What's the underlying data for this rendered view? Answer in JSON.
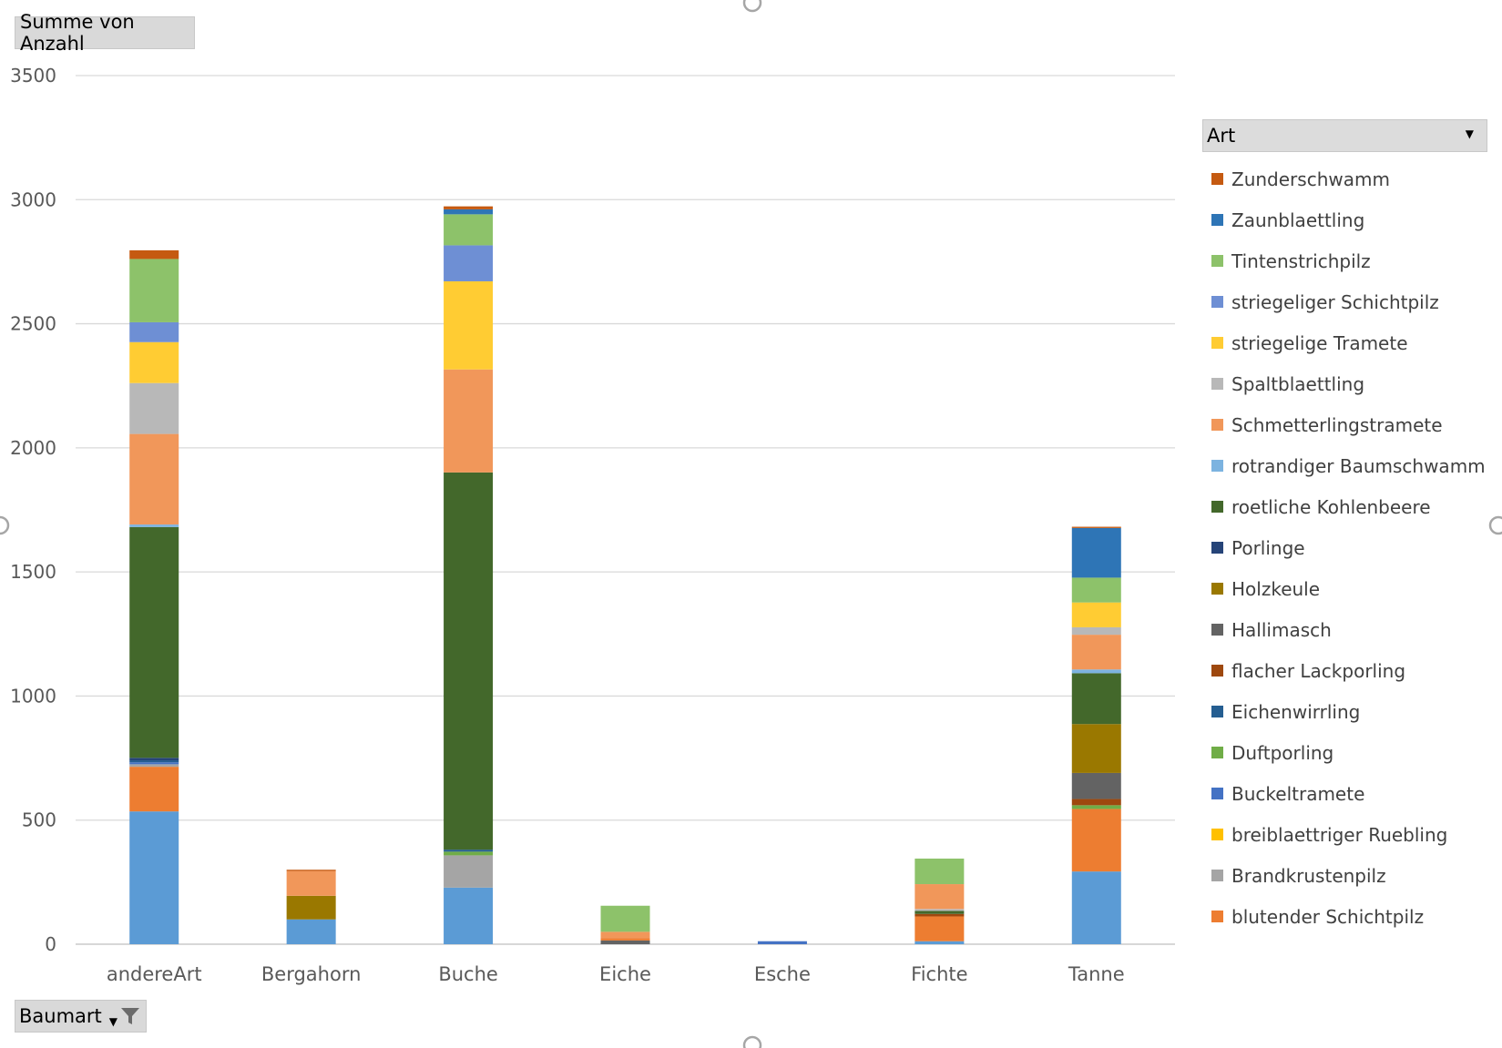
{
  "value_field": "Summe von Anzahl",
  "filter_field": "Baumart",
  "legend_title": "Art",
  "chart_data": {
    "type": "bar",
    "stacked": true,
    "ylim": [
      0,
      3500
    ],
    "yticks": [
      0,
      500,
      1000,
      1500,
      2000,
      2500,
      3000,
      3500
    ],
    "grid": true,
    "legend_position": "right",
    "categories": [
      "andereArt",
      "Bergahorn",
      "Buche",
      "Eiche",
      "Esche",
      "Fichte",
      "Tanne"
    ],
    "series": [
      {
        "name": "Zunderschwamm",
        "color": "#c55a11"
      },
      {
        "name": "Zaunblaettling",
        "color": "#2e75b6"
      },
      {
        "name": "Tintenstrichpilz",
        "color": "#8dc26a"
      },
      {
        "name": "striegeliger Schichtpilz",
        "color": "#6e8fd4"
      },
      {
        "name": "striegelige Tramete",
        "color": "#ffcc33"
      },
      {
        "name": "Spaltblaettling",
        "color": "#b8b8b8"
      },
      {
        "name": "Schmetterlingstramete",
        "color": "#f1975a"
      },
      {
        "name": "rotrandiger Baumschwamm",
        "color": "#7cb3e0"
      },
      {
        "name": "roetliche Kohlenbeere",
        "color": "#43682b"
      },
      {
        "name": "Porlinge",
        "color": "#264478"
      },
      {
        "name": "Holzkeule",
        "color": "#9a7800"
      },
      {
        "name": "Hallimasch",
        "color": "#636363"
      },
      {
        "name": "flacher Lackporling",
        "color": "#9e480e"
      },
      {
        "name": "Eichenwirrling",
        "color": "#255e91"
      },
      {
        "name": "Duftporling",
        "color": "#70ad47"
      },
      {
        "name": "Buckeltramete",
        "color": "#4472c4"
      },
      {
        "name": "breiblaettriger Ruebling",
        "color": "#ffc000"
      },
      {
        "name": "Brandkrustenpilz",
        "color": "#a5a5a5"
      },
      {
        "name": "blutender Schichtpilz",
        "color": "#ed7d31"
      },
      {
        "name": "",
        "color": "#5b9bd5"
      }
    ],
    "stacks": [
      [
        {
          "s": 19,
          "v": 535
        },
        {
          "s": 18,
          "v": 180
        },
        {
          "s": 17,
          "v": 10
        },
        {
          "s": 15,
          "v": 8
        },
        {
          "s": 13,
          "v": 8
        },
        {
          "s": 9,
          "v": 10
        },
        {
          "s": 8,
          "v": 930
        },
        {
          "s": 7,
          "v": 10
        },
        {
          "s": 6,
          "v": 365
        },
        {
          "s": 5,
          "v": 205
        },
        {
          "s": 4,
          "v": 165
        },
        {
          "s": 3,
          "v": 80
        },
        {
          "s": 2,
          "v": 255
        },
        {
          "s": 0,
          "v": 35
        }
      ],
      [
        {
          "s": 19,
          "v": 100
        },
        {
          "s": 10,
          "v": 95
        },
        {
          "s": 6,
          "v": 100
        },
        {
          "s": 0,
          "v": 5
        }
      ],
      [
        {
          "s": 19,
          "v": 228
        },
        {
          "s": 17,
          "v": 130
        },
        {
          "s": 14,
          "v": 15
        },
        {
          "s": 13,
          "v": 8
        },
        {
          "s": 8,
          "v": 1520
        },
        {
          "s": 6,
          "v": 415
        },
        {
          "s": 4,
          "v": 355
        },
        {
          "s": 3,
          "v": 145
        },
        {
          "s": 2,
          "v": 125
        },
        {
          "s": 1,
          "v": 20
        },
        {
          "s": 0,
          "v": 12
        }
      ],
      [
        {
          "s": 11,
          "v": 15
        },
        {
          "s": 18,
          "v": 10
        },
        {
          "s": 6,
          "v": 25
        },
        {
          "s": 2,
          "v": 105
        }
      ],
      [
        {
          "s": 15,
          "v": 12
        }
      ],
      [
        {
          "s": 19,
          "v": 12
        },
        {
          "s": 18,
          "v": 100
        },
        {
          "s": 12,
          "v": 10
        },
        {
          "s": 8,
          "v": 12
        },
        {
          "s": 5,
          "v": 8
        },
        {
          "s": 6,
          "v": 100
        },
        {
          "s": 2,
          "v": 103
        }
      ],
      [
        {
          "s": 19,
          "v": 293
        },
        {
          "s": 18,
          "v": 252
        },
        {
          "s": 14,
          "v": 15
        },
        {
          "s": 12,
          "v": 25
        },
        {
          "s": 11,
          "v": 105
        },
        {
          "s": 10,
          "v": 197
        },
        {
          "s": 8,
          "v": 205
        },
        {
          "s": 7,
          "v": 15
        },
        {
          "s": 6,
          "v": 140
        },
        {
          "s": 5,
          "v": 30
        },
        {
          "s": 4,
          "v": 100
        },
        {
          "s": 2,
          "v": 100
        },
        {
          "s": 1,
          "v": 200
        },
        {
          "s": 0,
          "v": 5
        }
      ]
    ]
  }
}
